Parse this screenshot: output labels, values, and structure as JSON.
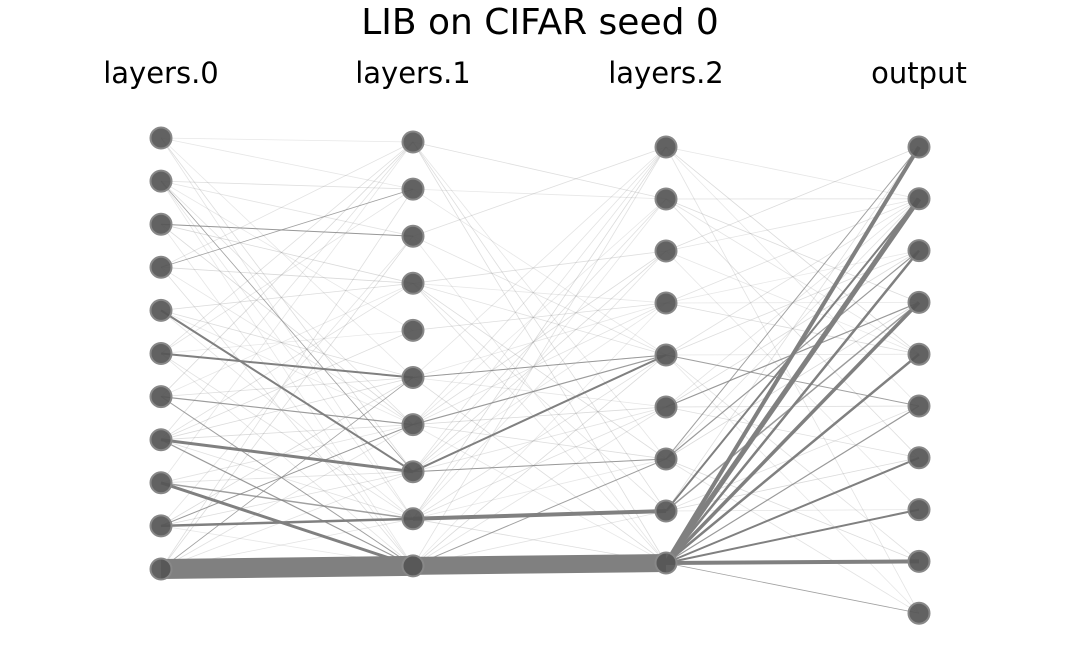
{
  "title": "LIB on CIFAR seed 0",
  "layers": [
    {
      "label": "layers.0",
      "nodes": 11
    },
    {
      "label": "layers.1",
      "nodes": 10
    },
    {
      "label": "layers.2",
      "nodes": 9
    },
    {
      "label": "output",
      "nodes": 10
    }
  ],
  "colors": {
    "node": "#555555",
    "edge": "#808080",
    "node_ring": "#888888"
  },
  "edges": [
    {
      "from": [
        0,
        10
      ],
      "to": [
        1,
        9
      ],
      "w": 20
    },
    {
      "from": [
        1,
        9
      ],
      "to": [
        2,
        8
      ],
      "w": 18
    },
    {
      "from": [
        2,
        8
      ],
      "to": [
        3,
        8
      ],
      "w": 4
    },
    {
      "from": [
        2,
        8
      ],
      "to": [
        3,
        0
      ],
      "w": 4
    },
    {
      "from": [
        2,
        8
      ],
      "to": [
        3,
        1
      ],
      "w": 5
    },
    {
      "from": [
        2,
        8
      ],
      "to": [
        3,
        3
      ],
      "w": 3.5
    },
    {
      "from": [
        2,
        8
      ],
      "to": [
        3,
        2
      ],
      "w": 2.5
    },
    {
      "from": [
        2,
        8
      ],
      "to": [
        3,
        4
      ],
      "w": 2.5
    },
    {
      "from": [
        2,
        8
      ],
      "to": [
        3,
        6
      ],
      "w": 2
    },
    {
      "from": [
        2,
        8
      ],
      "to": [
        3,
        7
      ],
      "w": 2
    },
    {
      "from": [
        2,
        8
      ],
      "to": [
        3,
        5
      ],
      "w": 1.2
    },
    {
      "from": [
        2,
        8
      ],
      "to": [
        3,
        9
      ],
      "w": 0.8
    },
    {
      "from": [
        2,
        7
      ],
      "to": [
        3,
        1
      ],
      "w": 2
    },
    {
      "from": [
        2,
        7
      ],
      "to": [
        3,
        3
      ],
      "w": 1.5
    },
    {
      "from": [
        2,
        6
      ],
      "to": [
        3,
        2
      ],
      "w": 1.2
    },
    {
      "from": [
        2,
        5
      ],
      "to": [
        3,
        3
      ],
      "w": 1.2
    },
    {
      "from": [
        2,
        6
      ],
      "to": [
        3,
        0
      ],
      "w": 1
    },
    {
      "from": [
        2,
        4
      ],
      "to": [
        3,
        5
      ],
      "w": 1
    },
    {
      "from": [
        1,
        8
      ],
      "to": [
        2,
        7
      ],
      "w": 4
    },
    {
      "from": [
        1,
        7
      ],
      "to": [
        2,
        4
      ],
      "w": 2
    },
    {
      "from": [
        1,
        6
      ],
      "to": [
        2,
        4
      ],
      "w": 1.2
    },
    {
      "from": [
        1,
        5
      ],
      "to": [
        2,
        4
      ],
      "w": 1
    },
    {
      "from": [
        1,
        9
      ],
      "to": [
        2,
        6
      ],
      "w": 1
    },
    {
      "from": [
        1,
        7
      ],
      "to": [
        2,
        6
      ],
      "w": 1
    },
    {
      "from": [
        0,
        8
      ],
      "to": [
        1,
        9
      ],
      "w": 3
    },
    {
      "from": [
        0,
        7
      ],
      "to": [
        1,
        7
      ],
      "w": 3
    },
    {
      "from": [
        0,
        9
      ],
      "to": [
        1,
        8
      ],
      "w": 2.5
    },
    {
      "from": [
        0,
        5
      ],
      "to": [
        1,
        5
      ],
      "w": 2
    },
    {
      "from": [
        0,
        4
      ],
      "to": [
        1,
        7
      ],
      "w": 2
    },
    {
      "from": [
        0,
        8
      ],
      "to": [
        1,
        8
      ],
      "w": 1.5
    },
    {
      "from": [
        0,
        6
      ],
      "to": [
        1,
        6
      ],
      "w": 1.2
    },
    {
      "from": [
        0,
        7
      ],
      "to": [
        1,
        9
      ],
      "w": 1.2
    },
    {
      "from": [
        0,
        6
      ],
      "to": [
        1,
        9
      ],
      "w": 1
    },
    {
      "from": [
        0,
        2
      ],
      "to": [
        1,
        2
      ],
      "w": 1
    },
    {
      "from": [
        0,
        9
      ],
      "to": [
        1,
        6
      ],
      "w": 1
    },
    {
      "from": [
        0,
        3
      ],
      "to": [
        1,
        1
      ],
      "w": 0.8
    },
    {
      "from": [
        0,
        1
      ],
      "to": [
        1,
        7
      ],
      "w": 0.8
    },
    {
      "from": [
        0,
        10
      ],
      "to": [
        1,
        5
      ],
      "w": 0.8
    }
  ]
}
